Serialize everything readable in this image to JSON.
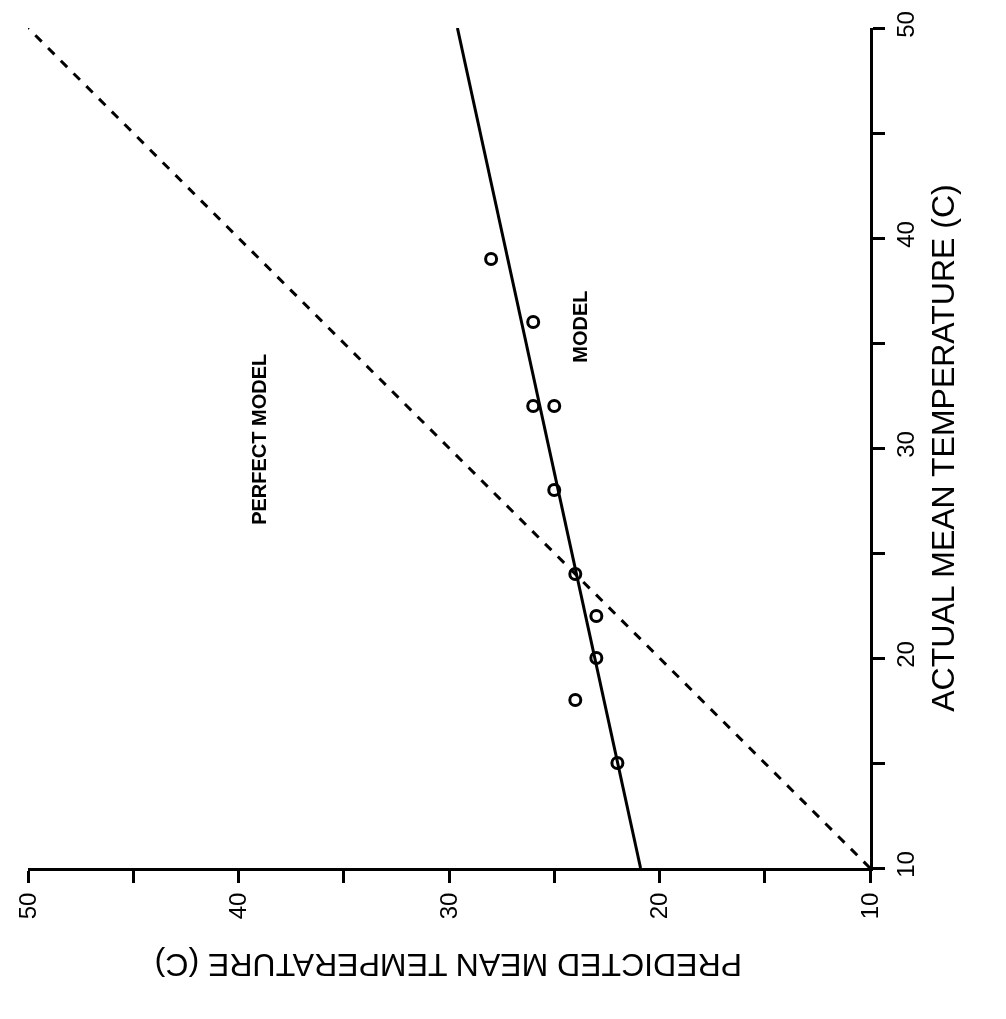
{
  "chart_data": {
    "type": "scatter",
    "xlabel": "PREDICTED MEAN TEMPERATURE (C)",
    "ylabel": "ACTUAL MEAN TEMPERATURE (C)",
    "xlim": [
      50,
      10
    ],
    "ylim": [
      10,
      50
    ],
    "xticks": [
      50,
      {
        "value": 45,
        "label": null
      },
      40,
      {
        "value": 35,
        "label": null
      },
      30,
      {
        "value": 25,
        "label": null
      },
      20,
      {
        "value": 15,
        "label": null
      },
      10
    ],
    "yticks": [
      10,
      {
        "value": 15,
        "label": null
      },
      20,
      {
        "value": 25,
        "label": null
      },
      30,
      {
        "value": 35,
        "label": null
      },
      40,
      {
        "value": 45,
        "label": null
      },
      50
    ],
    "grid": false,
    "series": [
      {
        "color": "#000000",
        "marker": "circle",
        "x": [
          22,
          24,
          23,
          23,
          24,
          25,
          25,
          26,
          26,
          28
        ],
        "values": [
          15,
          18,
          20,
          22,
          24,
          28,
          32,
          32,
          36,
          39
        ]
      },
      {
        "type": "line",
        "color": "#000000",
        "line_style": "solid",
        "marker": "none",
        "x": [
          20.9,
          29.6
        ],
        "values": [
          10,
          50
        ]
      },
      {
        "type": "line",
        "color": "#000000",
        "line_style": "dashed",
        "marker": "none",
        "x": [
          10,
          50
        ],
        "values": [
          10,
          50
        ]
      }
    ],
    "annotations": [
      "PERFECT MODEL",
      "MODEL"
    ]
  }
}
